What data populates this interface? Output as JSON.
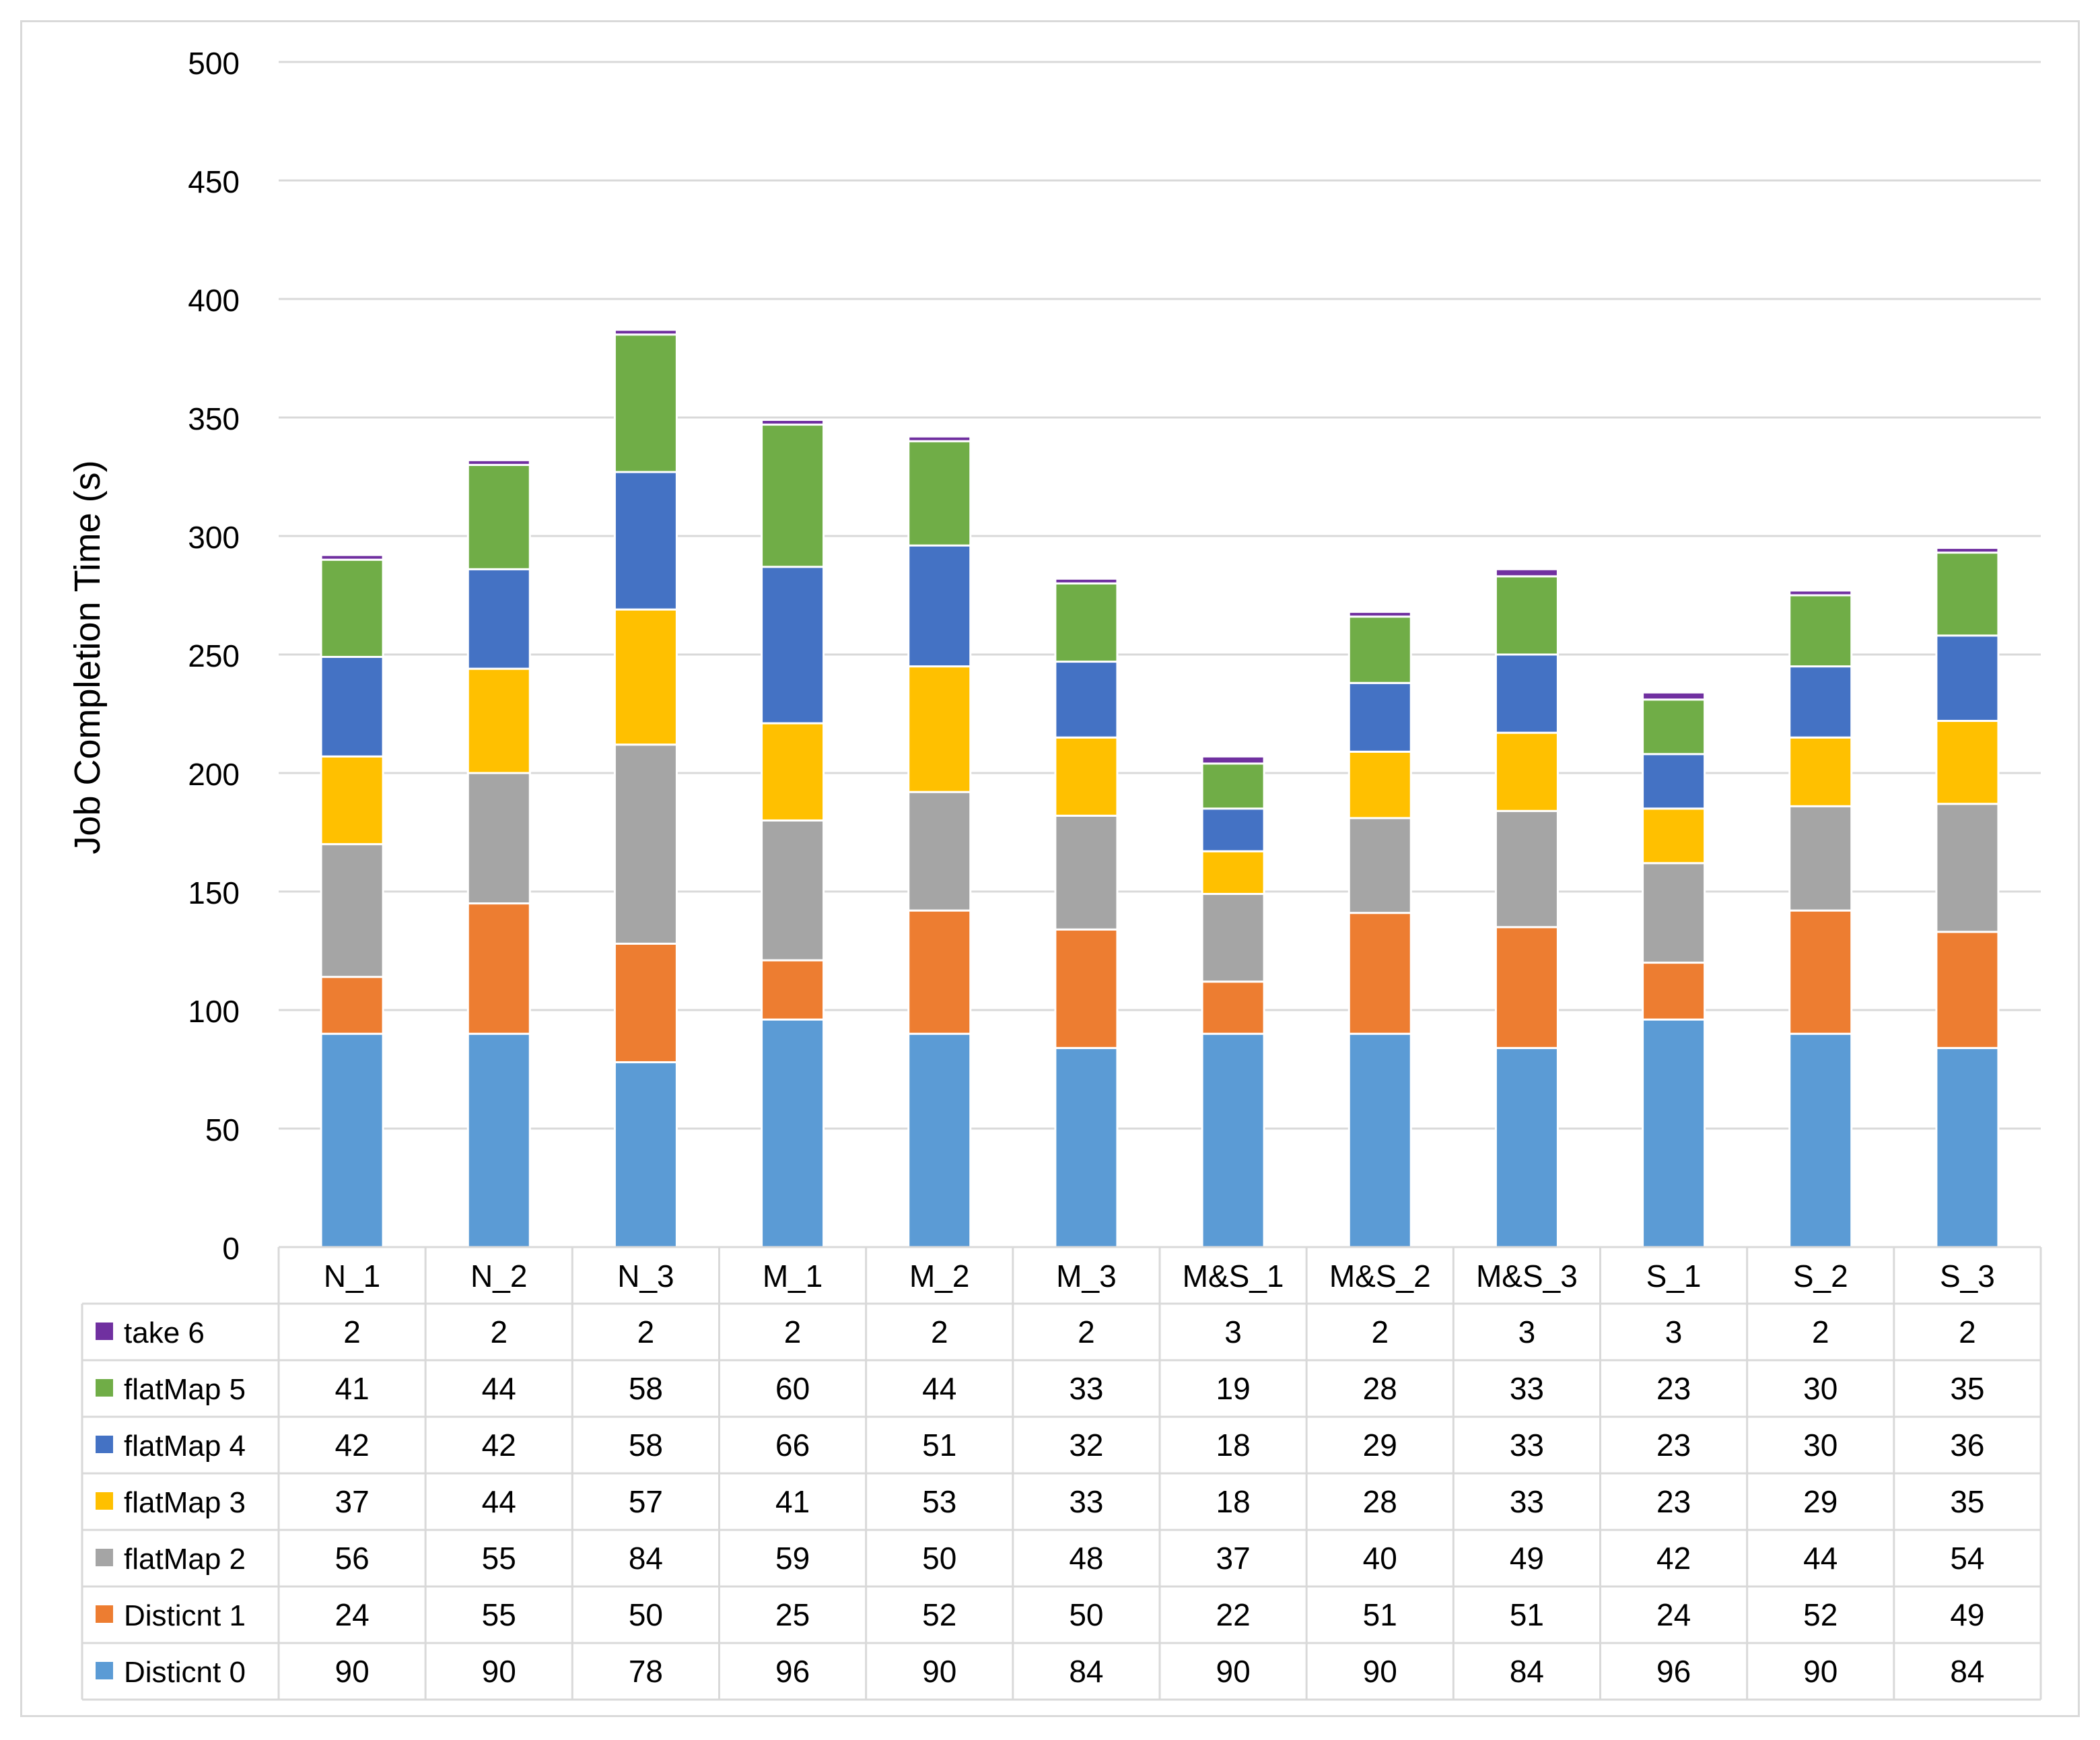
{
  "chart_data": {
    "type": "bar",
    "stacked": true,
    "title": "",
    "xlabel": "",
    "ylabel": "Job Completion Time (s)",
    "ylim": [
      0,
      500
    ],
    "yticks": [
      0,
      50,
      100,
      150,
      200,
      250,
      300,
      350,
      400,
      450,
      500
    ],
    "grid": true,
    "legend": "data-table",
    "categories": [
      "N_1",
      "N_2",
      "N_3",
      "M_1",
      "M_2",
      "M_3",
      "M&S_1",
      "M&S_2",
      "M&S_3",
      "S_1",
      "S_2",
      "S_3"
    ],
    "series": [
      {
        "name": "Disticnt 0",
        "color": "#5b9bd5",
        "values": [
          90,
          90,
          78,
          96,
          90,
          84,
          90,
          90,
          84,
          96,
          90,
          84
        ]
      },
      {
        "name": "Disticnt 1",
        "color": "#ed7d31",
        "values": [
          24,
          55,
          50,
          25,
          52,
          50,
          22,
          51,
          51,
          24,
          52,
          49
        ]
      },
      {
        "name": "flatMap 2",
        "color": "#a5a5a5",
        "values": [
          56,
          55,
          84,
          59,
          50,
          48,
          37,
          40,
          49,
          42,
          44,
          54
        ]
      },
      {
        "name": "flatMap 3",
        "color": "#ffc000",
        "values": [
          37,
          44,
          57,
          41,
          53,
          33,
          18,
          28,
          33,
          23,
          29,
          35
        ]
      },
      {
        "name": "flatMap 4",
        "color": "#4472c4",
        "values": [
          42,
          42,
          58,
          66,
          51,
          32,
          18,
          29,
          33,
          23,
          30,
          36
        ]
      },
      {
        "name": "flatMap 5",
        "color": "#70ad47",
        "values": [
          41,
          44,
          58,
          60,
          44,
          33,
          19,
          28,
          33,
          23,
          30,
          35
        ]
      },
      {
        "name": "take 6",
        "color": "#7030a0",
        "values": [
          2,
          2,
          2,
          2,
          2,
          2,
          3,
          2,
          3,
          3,
          2,
          2
        ]
      }
    ]
  }
}
